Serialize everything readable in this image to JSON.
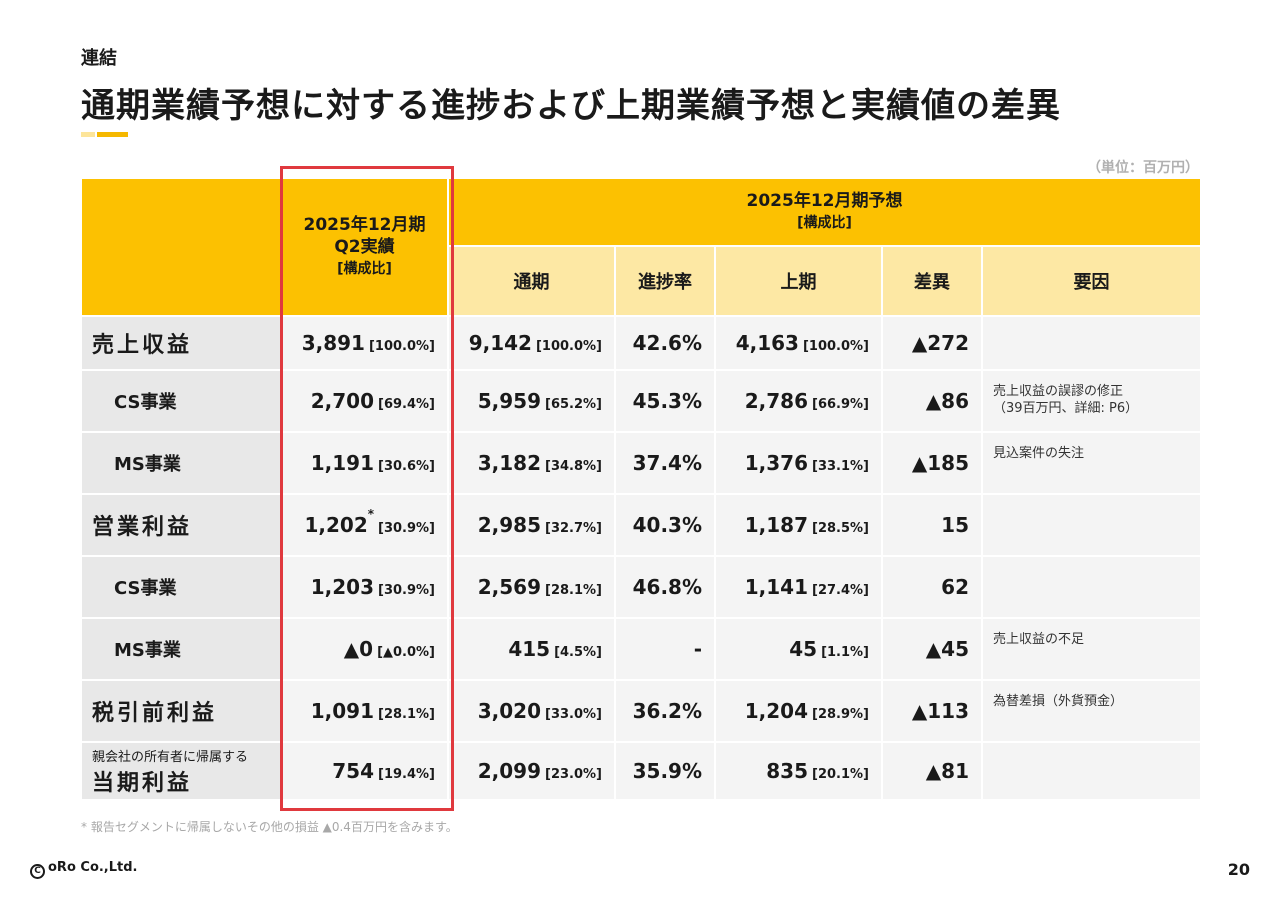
{
  "header": {
    "eyebrow": "連結",
    "title": "通期業績予想に対する進捗および上期業績予想と実績値の差異",
    "unit": "（単位：百万円）"
  },
  "table": {
    "actual_header": [
      "2025年12月期",
      "Q2実績",
      "[構成比]"
    ],
    "forecast_header": [
      "2025年12月期予想",
      "[構成比]"
    ],
    "columns": [
      "通期",
      "進捗率",
      "上期",
      "差異",
      "要因"
    ],
    "rows": [
      {
        "label": "売上収益",
        "actual": "3,891",
        "actual_ratio": "[100.0%]",
        "full": "9,142",
        "full_ratio": "[100.0%]",
        "progress": "42.6%",
        "half": "4,163",
        "half_ratio": "[100.0%]",
        "diff": "▲272",
        "reason": ""
      },
      {
        "label": "CS事業",
        "actual": "2,700",
        "actual_ratio": "[69.4%]",
        "full": "5,959",
        "full_ratio": "[65.2%]",
        "progress": "45.3%",
        "half": "2,786",
        "half_ratio": "[66.9%]",
        "diff": "▲86",
        "reason": "売上収益の誤謬の修正",
        "reason2": "（39百万円、詳細: P6）"
      },
      {
        "label": "MS事業",
        "actual": "1,191",
        "actual_ratio": "[30.6%]",
        "full": "3,182",
        "full_ratio": "[34.8%]",
        "progress": "37.4%",
        "half": "1,376",
        "half_ratio": "[33.1%]",
        "diff": "▲185",
        "reason": "見込案件の失注"
      },
      {
        "label": "営業利益",
        "actual": "1,202",
        "actual_mark": "*",
        "actual_ratio": "[30.9%]",
        "full": "2,985",
        "full_ratio": "[32.7%]",
        "progress": "40.3%",
        "half": "1,187",
        "half_ratio": "[28.5%]",
        "diff": "15",
        "reason": ""
      },
      {
        "label": "CS事業",
        "actual": "1,203",
        "actual_ratio": "[30.9%]",
        "full": "2,569",
        "full_ratio": "[28.1%]",
        "progress": "46.8%",
        "half": "1,141",
        "half_ratio": "[27.4%]",
        "diff": "62",
        "reason": ""
      },
      {
        "label": "MS事業",
        "actual": "▲0",
        "actual_ratio": "[▲0.0%]",
        "full": "415",
        "full_ratio": "[4.5%]",
        "progress": "-",
        "half": "45",
        "half_ratio": "[1.1%]",
        "diff": "▲45",
        "reason": "売上収益の不足"
      },
      {
        "label": "税引前利益",
        "actual": "1,091",
        "actual_ratio": "[28.1%]",
        "full": "3,020",
        "full_ratio": "[33.0%]",
        "progress": "36.2%",
        "half": "1,204",
        "half_ratio": "[28.9%]",
        "diff": "▲113",
        "reason": "為替差損（外貨預金）"
      },
      {
        "label_small": "親会社の所有者に帰属する",
        "label": "当期利益",
        "actual": "754",
        "actual_ratio": "[19.4%]",
        "full": "2,099",
        "full_ratio": "[23.0%]",
        "progress": "35.9%",
        "half": "835",
        "half_ratio": "[20.1%]",
        "diff": "▲81",
        "reason": ""
      }
    ]
  },
  "footnote": "* 報告セグメントに帰属しないその他の損益 ▲0.4百万円を含みます。",
  "footer": {
    "copyright_symbol": "C",
    "company": "oRo Co.,Ltd.",
    "page": "20"
  },
  "colors": {
    "header_yellow": "#fcc101",
    "header_light": "#fde8a4",
    "highlight_red": "#e0393e"
  }
}
